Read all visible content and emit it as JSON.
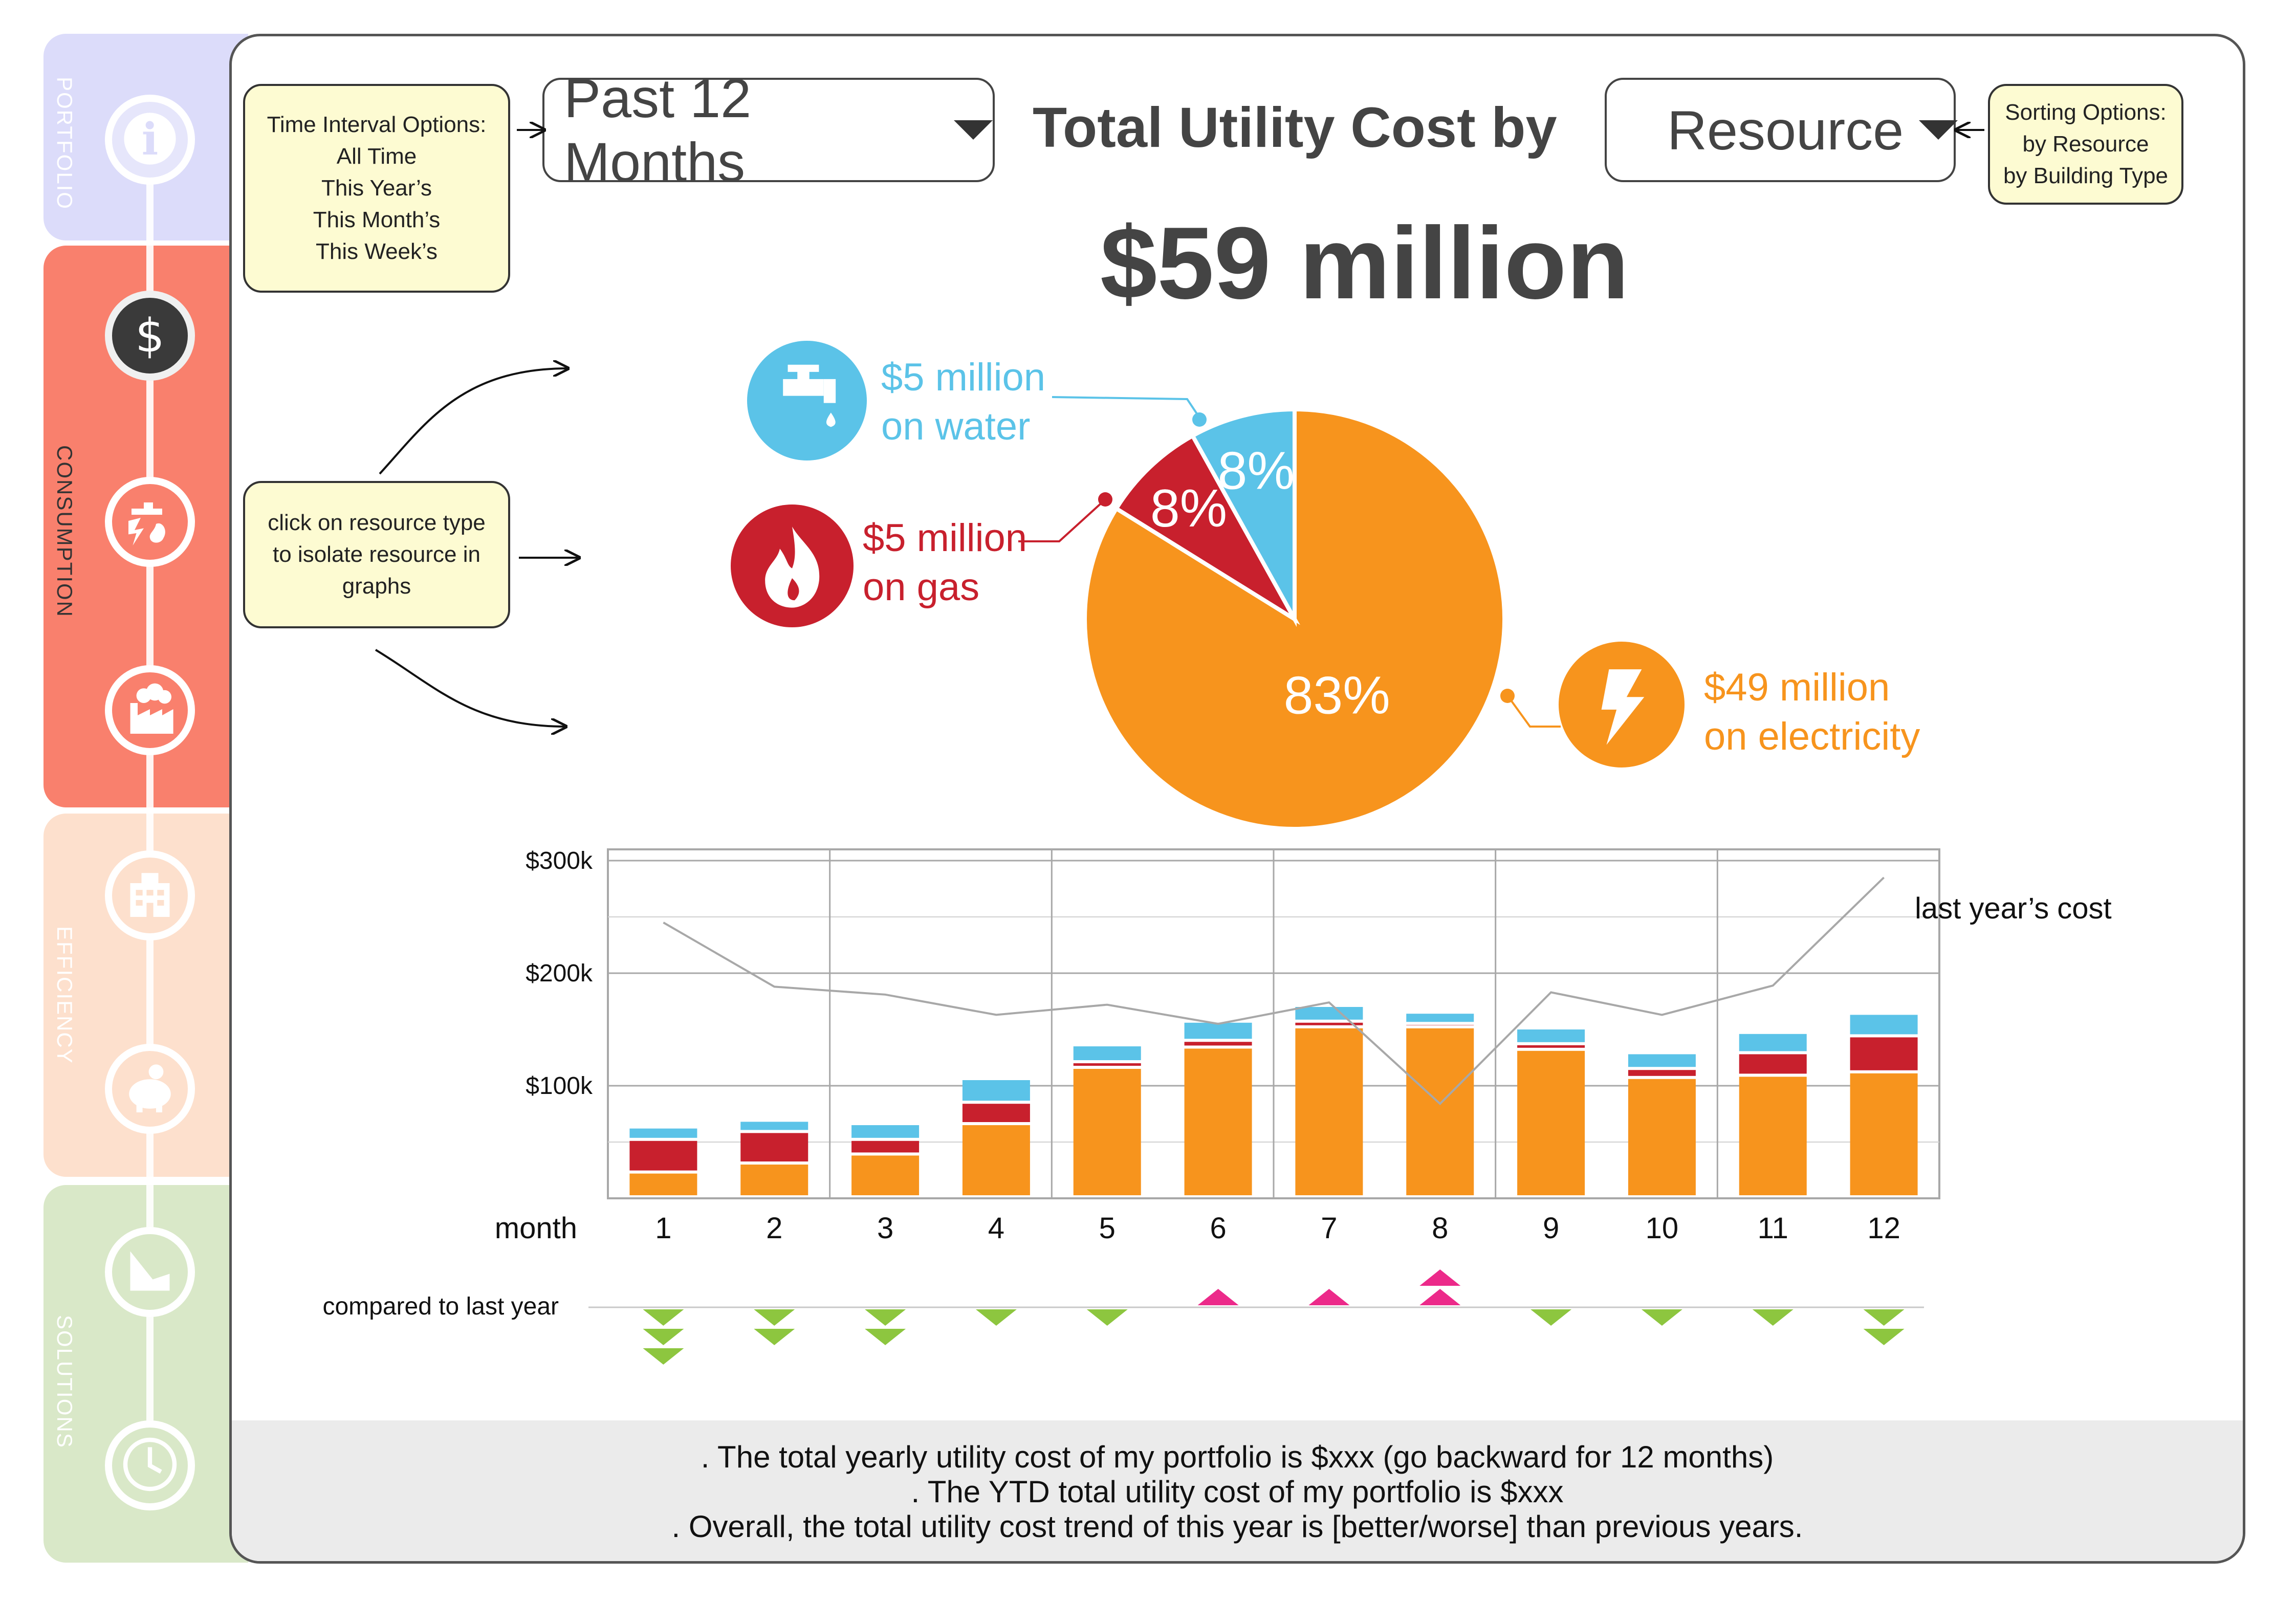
{
  "sidebar": {
    "sections": [
      {
        "label": "PORTFOLIO",
        "color": "#dcdcfa"
      },
      {
        "label": "CONSUMPTION",
        "color": "#f9806d"
      },
      {
        "label": "EFFICIENCY",
        "color": "#fde0cd"
      },
      {
        "label": "SOLUTIONS",
        "color": "#d9e8c8"
      }
    ],
    "items": [
      {
        "icon": "info-icon"
      },
      {
        "icon": "dollar-icon"
      },
      {
        "icon": "resources-icon"
      },
      {
        "icon": "factory-icon"
      },
      {
        "icon": "building-icon"
      },
      {
        "icon": "piggy-bank-icon"
      },
      {
        "icon": "chart-icon"
      },
      {
        "icon": "clock-icon"
      }
    ]
  },
  "notes": {
    "time_interval": [
      "Time Interval Options:",
      "All Time",
      "This Year’s",
      "This Month’s",
      "This Week’s"
    ],
    "sorting": [
      "Sorting Options:",
      "by Resource",
      "by Building Type"
    ],
    "click_hint": [
      "click on resource type",
      "to isolate resource in",
      "graphs"
    ]
  },
  "header": {
    "interval_value": "Past 12 Months",
    "title_prefix": "Total Utility Cost by",
    "sort_value": "Resource",
    "total": "$59 million"
  },
  "resources": {
    "water": {
      "line1": "$5 million",
      "line2": "on water",
      "color": "#5bc3e8",
      "icon": "faucet-icon"
    },
    "gas": {
      "line1": "$5 million",
      "line2": "on gas",
      "color": "#c8202d",
      "icon": "flame-icon"
    },
    "electricity": {
      "line1": "$49 million",
      "line2": "on electricity",
      "color": "#f7941d",
      "icon": "lightning-icon"
    }
  },
  "chart_data": [
    {
      "type": "pie",
      "slices": [
        {
          "label": "electricity",
          "value": 83,
          "text": "83%",
          "color": "#f7941d"
        },
        {
          "label": "gas",
          "value": 8,
          "text": "8%",
          "color": "#c8202d"
        },
        {
          "label": "water",
          "value": 8,
          "text": "8%",
          "color": "#5bc3e8"
        }
      ]
    },
    {
      "type": "bar",
      "stacked": true,
      "xlabel": "month",
      "categories": [
        "1",
        "2",
        "3",
        "4",
        "5",
        "6",
        "7",
        "8",
        "9",
        "10",
        "11",
        "12"
      ],
      "yticks": [
        "$300k",
        "$200k",
        "$100k"
      ],
      "ylim": [
        0,
        310
      ],
      "series": [
        {
          "name": "electricity",
          "color": "#f7941d",
          "values": [
            22,
            30,
            38,
            65,
            115,
            133,
            151,
            151,
            131,
            106,
            108,
            111
          ]
        },
        {
          "name": "gas",
          "color": "#c8202d",
          "values": [
            29,
            28,
            13,
            19,
            5,
            6,
            5,
            3,
            5,
            8,
            20,
            32
          ]
        },
        {
          "name": "water",
          "color": "#5bc3e8",
          "values": [
            11,
            10,
            14,
            21,
            15,
            17,
            14,
            10,
            14,
            14,
            18,
            20
          ]
        }
      ],
      "line": {
        "name": "last year’s cost",
        "color": "#a8a8a8",
        "values": [
          245,
          188,
          181,
          163,
          172,
          155,
          174,
          84,
          183,
          163,
          189,
          285
        ]
      },
      "grid": true
    }
  ],
  "comparison": {
    "label": "compared to last year",
    "changes": [
      -3,
      -2,
      -2,
      -1,
      -1,
      1,
      1,
      2,
      -1,
      -1,
      -1,
      -2
    ],
    "down_color": "#8dc63f",
    "up_color": "#ec2a8a"
  },
  "footer": {
    "lines": [
      ". The total yearly utility cost of my portfolio is $xxx (go backward for 12 months)",
      ". The YTD total utility cost of my portfolio is $xxx",
      ". Overall, the total utility cost trend of this year is [better/worse] than previous years."
    ]
  }
}
